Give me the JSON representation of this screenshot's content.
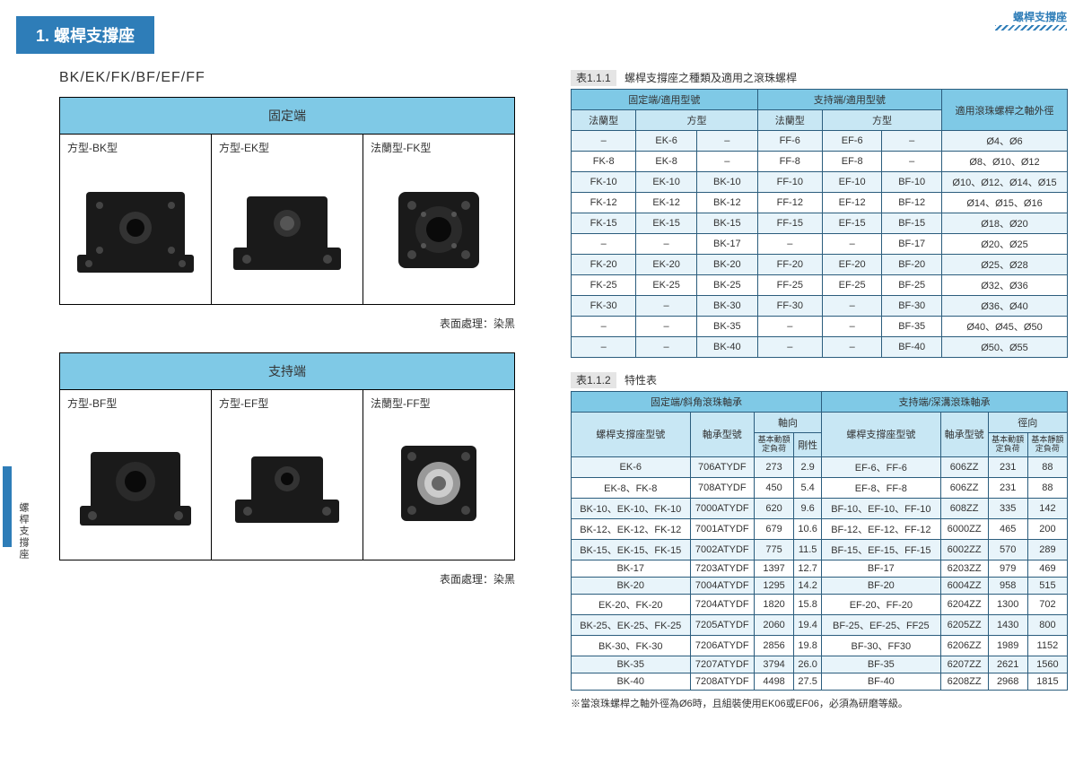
{
  "page": {
    "header_number": "1.",
    "header_title": "螺桿支撐座",
    "top_right_label": "螺桿支撐座",
    "side_label": "螺桿支撐座",
    "subtitle": "BK/EK/FK/BF/EF/FF",
    "caption_surface": "表面處理：染黑"
  },
  "panel1": {
    "title": "固定端",
    "cells": [
      {
        "label": "方型-BK型",
        "type": "BK"
      },
      {
        "label": "方型-EK型",
        "type": "EK"
      },
      {
        "label": "法蘭型-FK型",
        "type": "FK"
      }
    ]
  },
  "panel2": {
    "title": "支持端",
    "cells": [
      {
        "label": "方型-BF型",
        "type": "BF"
      },
      {
        "label": "方型-EF型",
        "type": "EF"
      },
      {
        "label": "法蘭型-FF型",
        "type": "FF"
      }
    ]
  },
  "table1": {
    "cap_id": "表1.1.1",
    "cap_text": "螺桿支撐座之種類及適用之滾珠螺桿",
    "h1": {
      "fixed": "固定端/適用型號",
      "support": "支持端/適用型號",
      "diam": "適用滾珠螺桿之軸外徑"
    },
    "h2": {
      "flange": "法蘭型",
      "square": "方型"
    },
    "rows": [
      [
        "–",
        "EK-6",
        "–",
        "FF-6",
        "EF-6",
        "–",
        "Ø4、Ø6"
      ],
      [
        "FK-8",
        "EK-8",
        "–",
        "FF-8",
        "EF-8",
        "–",
        "Ø8、Ø10、Ø12"
      ],
      [
        "FK-10",
        "EK-10",
        "BK-10",
        "FF-10",
        "EF-10",
        "BF-10",
        "Ø10、Ø12、Ø14、Ø15"
      ],
      [
        "FK-12",
        "EK-12",
        "BK-12",
        "FF-12",
        "EF-12",
        "BF-12",
        "Ø14、Ø15、Ø16"
      ],
      [
        "FK-15",
        "EK-15",
        "BK-15",
        "FF-15",
        "EF-15",
        "BF-15",
        "Ø18、Ø20"
      ],
      [
        "–",
        "–",
        "BK-17",
        "–",
        "–",
        "BF-17",
        "Ø20、Ø25"
      ],
      [
        "FK-20",
        "EK-20",
        "BK-20",
        "FF-20",
        "EF-20",
        "BF-20",
        "Ø25、Ø28"
      ],
      [
        "FK-25",
        "EK-25",
        "BK-25",
        "FF-25",
        "EF-25",
        "BF-25",
        "Ø32、Ø36"
      ],
      [
        "FK-30",
        "–",
        "BK-30",
        "FF-30",
        "–",
        "BF-30",
        "Ø36、Ø40"
      ],
      [
        "–",
        "–",
        "BK-35",
        "–",
        "–",
        "BF-35",
        "Ø40、Ø45、Ø50"
      ],
      [
        "–",
        "–",
        "BK-40",
        "–",
        "–",
        "BF-40",
        "Ø50、Ø55"
      ]
    ]
  },
  "table2": {
    "cap_id": "表1.1.2",
    "cap_text": "特性表",
    "h1": {
      "fixed": "固定端/斜角滾珠軸承",
      "support": "支持端/深溝滾珠軸承"
    },
    "h2": {
      "model": "螺桿支撐座型號",
      "bearing": "軸承型號",
      "axial": "軸向",
      "radial": "徑向"
    },
    "h3": {
      "dyn": "基本動額定負荷",
      "rigid": "剛性",
      "stat": "基本靜額定負荷"
    },
    "rows": [
      [
        "EK-6",
        "706ATYDF",
        "273",
        "2.9",
        "EF-6、FF-6",
        "606ZZ",
        "231",
        "88"
      ],
      [
        "EK-8、FK-8",
        "708ATYDF",
        "450",
        "5.4",
        "EF-8、FF-8",
        "606ZZ",
        "231",
        "88"
      ],
      [
        "BK-10、EK-10、FK-10",
        "7000ATYDF",
        "620",
        "9.6",
        "BF-10、EF-10、FF-10",
        "608ZZ",
        "335",
        "142"
      ],
      [
        "BK-12、EK-12、FK-12",
        "7001ATYDF",
        "679",
        "10.6",
        "BF-12、EF-12、FF-12",
        "6000ZZ",
        "465",
        "200"
      ],
      [
        "BK-15、EK-15、FK-15",
        "7002ATYDF",
        "775",
        "11.5",
        "BF-15、EF-15、FF-15",
        "6002ZZ",
        "570",
        "289"
      ],
      [
        "BK-17",
        "7203ATYDF",
        "1397",
        "12.7",
        "BF-17",
        "6203ZZ",
        "979",
        "469"
      ],
      [
        "BK-20",
        "7004ATYDF",
        "1295",
        "14.2",
        "BF-20",
        "6004ZZ",
        "958",
        "515"
      ],
      [
        "EK-20、FK-20",
        "7204ATYDF",
        "1820",
        "15.8",
        "EF-20、FF-20",
        "6204ZZ",
        "1300",
        "702"
      ],
      [
        "BK-25、EK-25、FK-25",
        "7205ATYDF",
        "2060",
        "19.4",
        "BF-25、EF-25、FF25",
        "6205ZZ",
        "1430",
        "800"
      ],
      [
        "BK-30、FK-30",
        "7206ATYDF",
        "2856",
        "19.8",
        "BF-30、FF30",
        "6206ZZ",
        "1989",
        "1152"
      ],
      [
        "BK-35",
        "7207ATYDF",
        "3794",
        "26.0",
        "BF-35",
        "6207ZZ",
        "2621",
        "1560"
      ],
      [
        "BK-40",
        "7208ATYDF",
        "4498",
        "27.5",
        "BF-40",
        "6208ZZ",
        "2968",
        "1815"
      ]
    ],
    "footnote": "※當滾珠螺桿之軸外徑為Ø6時，且組裝使用EK06或EF06，必須為研磨等級。"
  },
  "colors": {
    "primary": "#2e7db8",
    "th": "#7fc9e6",
    "th2": "#c8e7f4",
    "odd": "#e8f4fa",
    "border": "#2b5d7d"
  }
}
